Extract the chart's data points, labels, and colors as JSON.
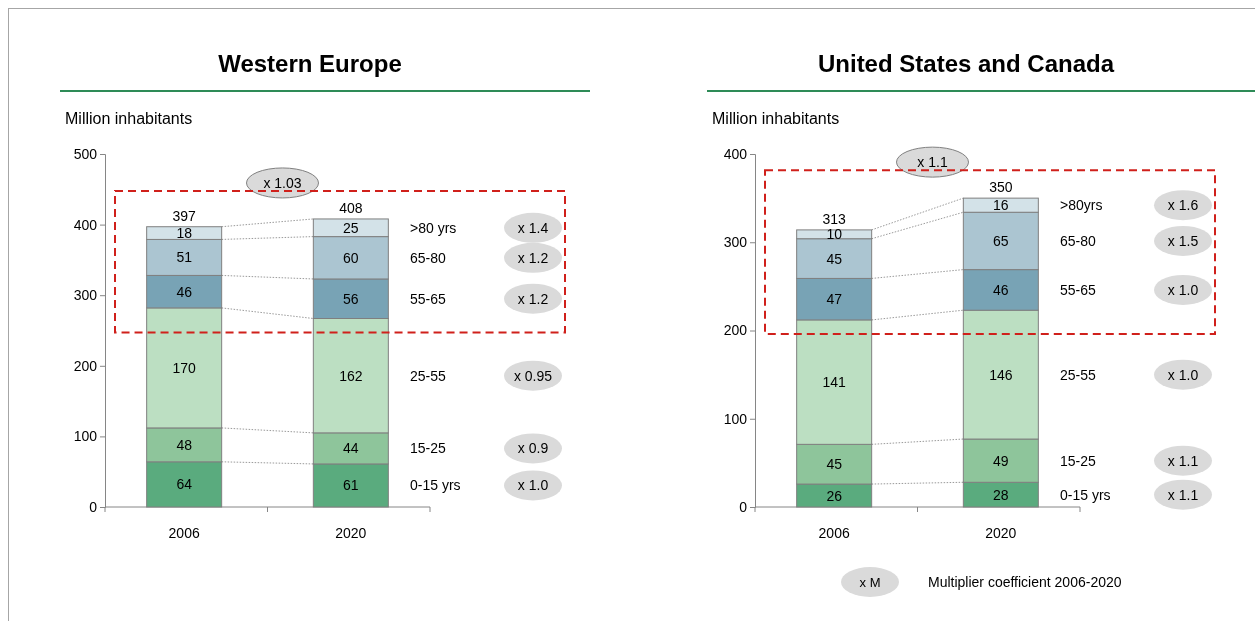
{
  "chart_data": [
    {
      "type": "bar",
      "title": "Western Europe",
      "ylabel": "Million inhabitants",
      "categories": [
        "2006",
        "2020"
      ],
      "stacked": true,
      "data_labels": true,
      "ylim": [
        0,
        500
      ],
      "yticks": [
        0,
        100,
        200,
        300,
        400,
        500
      ],
      "grid": false,
      "series": [
        {
          "name": "0-15 yrs",
          "color": "#5aab7e",
          "values": [
            64,
            61
          ]
        },
        {
          "name": "15-25",
          "color": "#8ec59b",
          "values": [
            48,
            44
          ]
        },
        {
          "name": "25-55",
          "color": "#bcdfc2",
          "values": [
            170,
            162
          ]
        },
        {
          "name": "55-65",
          "color": "#78a3b5",
          "values": [
            46,
            56
          ]
        },
        {
          "name": "65-80",
          "color": "#abc5d1",
          "values": [
            51,
            60
          ]
        },
        {
          "name": ">80 yrs",
          "color": "#d3e2e8",
          "values": [
            18,
            25
          ]
        }
      ],
      "totals": [
        "397",
        "408"
      ],
      "annotations": [
        "x 1.03",
        "x 1.0",
        "x 0.9",
        "x 0.95",
        "x 1.2",
        "x 1.2",
        "x 1.4"
      ]
    },
    {
      "type": "bar",
      "title": "United States and Canada",
      "ylabel": "Million inhabitants",
      "categories": [
        "2006",
        "2020"
      ],
      "stacked": true,
      "data_labels": true,
      "ylim": [
        0,
        400
      ],
      "yticks": [
        0,
        100,
        200,
        300,
        400
      ],
      "grid": false,
      "series": [
        {
          "name": "0-15 yrs",
          "color": "#5aab7e",
          "values": [
            26,
            28
          ]
        },
        {
          "name": "15-25",
          "color": "#8ec59b",
          "values": [
            45,
            49
          ]
        },
        {
          "name": "25-55",
          "color": "#bcdfc2",
          "values": [
            141,
            146
          ]
        },
        {
          "name": "55-65",
          "color": "#78a3b5",
          "values": [
            47,
            46
          ]
        },
        {
          "name": "65-80",
          "color": "#abc5d1",
          "values": [
            45,
            65
          ]
        },
        {
          "name": ">80yrs",
          "color": "#d3e2e8",
          "values": [
            10,
            16
          ]
        }
      ],
      "totals": [
        "313",
        "350"
      ],
      "annotations": [
        "x 1.1",
        "x 1.1",
        "x 1.1",
        "x 1.0",
        "x 1.0",
        "x 1.5",
        "x 1.6",
        "x M",
        "Multiplier coefficient 2006-2020"
      ]
    }
  ]
}
